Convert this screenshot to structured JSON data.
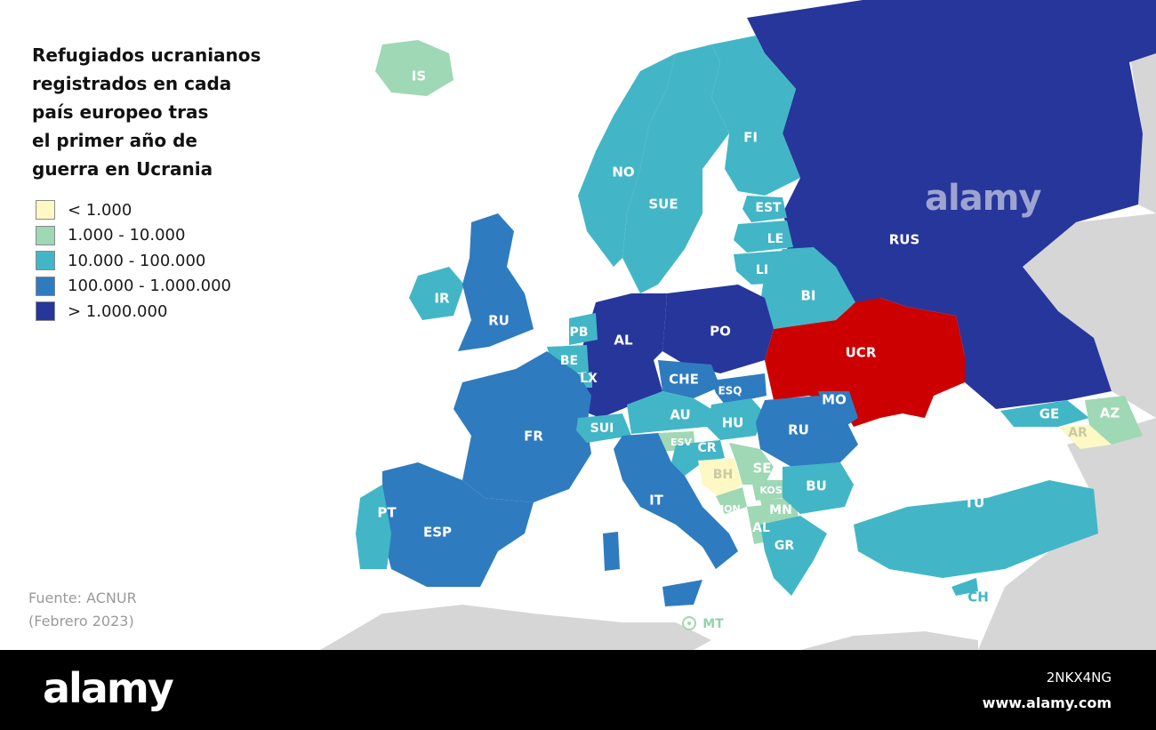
{
  "title_lines": [
    "Refugiados ucranianos",
    "registrados en cada",
    "país europeo tras",
    "el primer año de",
    "guerra en Ucrania"
  ],
  "colors": {
    "sea": "#ffffff",
    "non_europe_land": "#d6d6d6",
    "border": "#ffffff",
    "ukraine": "#cc0000",
    "footer": "#000000",
    "tier1": "#fdf8c4",
    "tier2": "#9ed8b4",
    "tier3": "#42b6c6",
    "tier4": "#2f7bbf",
    "tier5": "#27369a"
  },
  "legend": [
    {
      "label": "< 1.000",
      "tier": "tier1"
    },
    {
      "label": "1.000 - 10.000",
      "tier": "tier2"
    },
    {
      "label": "10.000 - 100.000",
      "tier": "tier3"
    },
    {
      "label": "100.000 - 1.000.000",
      "tier": "tier4"
    },
    {
      "label": "> 1.000.000",
      "tier": "tier5"
    }
  ],
  "countries": [
    {
      "code": "IS",
      "tier": "tier2"
    },
    {
      "code": "NO",
      "tier": "tier3"
    },
    {
      "code": "SUE",
      "tier": "tier3"
    },
    {
      "code": "FI",
      "tier": "tier3"
    },
    {
      "code": "EST",
      "tier": "tier3"
    },
    {
      "code": "LE",
      "tier": "tier3"
    },
    {
      "code": "LI",
      "tier": "tier3"
    },
    {
      "code": "BI",
      "tier": "tier3"
    },
    {
      "code": "RUS",
      "tier": "tier5"
    },
    {
      "code": "IR",
      "tier": "tier3"
    },
    {
      "code": "RU",
      "tier": "tier4"
    },
    {
      "code": "PB",
      "tier": "tier3"
    },
    {
      "code": "BE",
      "tier": "tier3"
    },
    {
      "code": "LX",
      "tier": "tier3"
    },
    {
      "code": "AL",
      "tier": "tier5"
    },
    {
      "code": "PO",
      "tier": "tier5"
    },
    {
      "code": "UCR",
      "tier": "ukraine"
    },
    {
      "code": "CHE",
      "tier": "tier4"
    },
    {
      "code": "ESQ",
      "tier": "tier4"
    },
    {
      "code": "MO",
      "tier": "tier4"
    },
    {
      "code": "AU",
      "tier": "tier3"
    },
    {
      "code": "HU",
      "tier": "tier3"
    },
    {
      "code": "RU",
      "tier": "tier4"
    },
    {
      "code": "FR",
      "tier": "tier4"
    },
    {
      "code": "SUI",
      "tier": "tier3"
    },
    {
      "code": "ESV",
      "tier": "tier2"
    },
    {
      "code": "CR",
      "tier": "tier3"
    },
    {
      "code": "BH",
      "tier": "tier1"
    },
    {
      "code": "SE",
      "tier": "tier2"
    },
    {
      "code": "KOS",
      "tier": "tier2"
    },
    {
      "code": "MON",
      "tier": "tier2"
    },
    {
      "code": "MN",
      "tier": "tier2"
    },
    {
      "code": "AL",
      "tier": "tier2"
    },
    {
      "code": "BU",
      "tier": "tier3"
    },
    {
      "code": "GR",
      "tier": "tier3"
    },
    {
      "code": "IT",
      "tier": "tier4"
    },
    {
      "code": "PT",
      "tier": "tier3"
    },
    {
      "code": "ESP",
      "tier": "tier4"
    },
    {
      "code": "TU",
      "tier": "tier3"
    },
    {
      "code": "GE",
      "tier": "tier3"
    },
    {
      "code": "AZ",
      "tier": "tier2"
    },
    {
      "code": "AR",
      "tier": "tier1"
    },
    {
      "code": "CH",
      "tier": "tier3"
    },
    {
      "code": "MT",
      "tier": "tier2"
    }
  ],
  "source_lines": [
    "Fuente: ACNUR",
    "(Febrero 2023)"
  ],
  "watermark": "alamy",
  "footer": {
    "logo": "alamy",
    "image_id": "2NKX4NG",
    "url": "www.alamy.com"
  }
}
